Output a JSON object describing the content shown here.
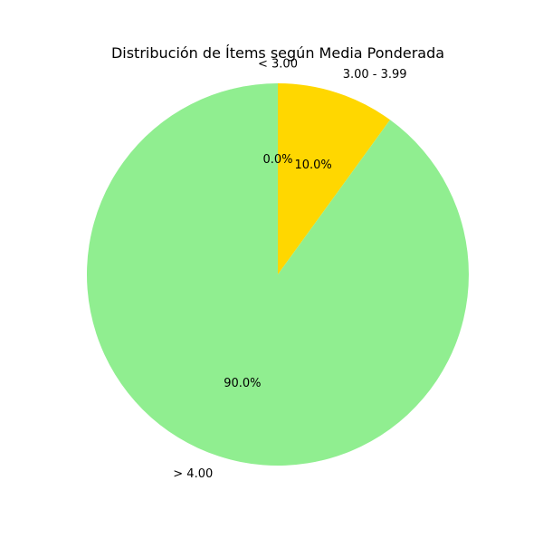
{
  "chart_data": {
    "type": "pie",
    "title": "Distribución de Ítems según Media Ponderada",
    "slices": [
      {
        "label": "< 3.00",
        "value": 0.0,
        "pct_label": "0.0%",
        "color": "#ff6347"
      },
      {
        "label": "3.00 - 3.99",
        "value": 10.0,
        "pct_label": "10.0%",
        "color": "#ffd700"
      },
      {
        "label": "> 4.00",
        "value": 90.0,
        "pct_label": "90.0%",
        "color": "#90ee90"
      }
    ],
    "start_angle_deg": 90,
    "direction": "clockwise",
    "legend": "none"
  }
}
